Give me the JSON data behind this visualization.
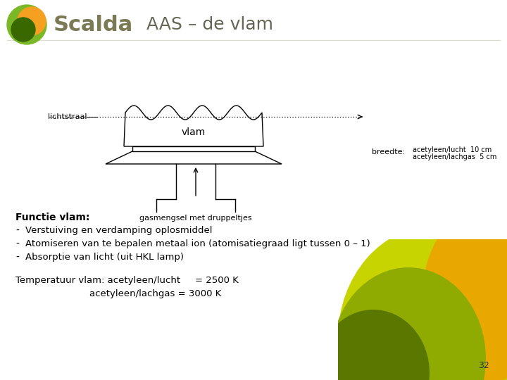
{
  "title": "AAS – de vlam",
  "title_fontsize": 18,
  "title_color": "#666655",
  "scalda_text": "Scalda",
  "scalda_fontsize": 22,
  "scalda_color": "#7a7a55",
  "background_color": "#ffffff",
  "diagram": {
    "flame_label": "vlam",
    "lichtstraal_label": "lichtstraal",
    "breedte_label": "breedte:",
    "acetyleen_lucht": "acetyleen/lucht  10 cm",
    "acetyleen_lachgas": "acetyleen/lachgas  5 cm",
    "gasmengsel_label": "gasmengsel met druppeltjes"
  },
  "bullet_title": "Functie vlam:",
  "bullets": [
    "Verstuiving en verdamping oplosmiddel",
    "Atomiseren van te bepalen metaal ion (atomisatiegraad ligt tussen 0 – 1)",
    "Absorptie van licht (uit HKL lamp)"
  ],
  "temp_label": "Temperatuur vlam:",
  "temp_line1a": "acetyleen/lucht",
  "temp_line1b": "= 2500 K",
  "temp_line2a": "acetyleen/lachgas = 3000 K",
  "page_number": "32",
  "logo_colors": {
    "outer_green": "#7ab828",
    "inner_orange": "#f5a020",
    "dark_green": "#3a6800"
  },
  "decor_colors": {
    "yellow_green": "#c8d400",
    "orange_yellow": "#e8a800",
    "olive_green": "#8faa00",
    "dark_green": "#5a7800"
  }
}
